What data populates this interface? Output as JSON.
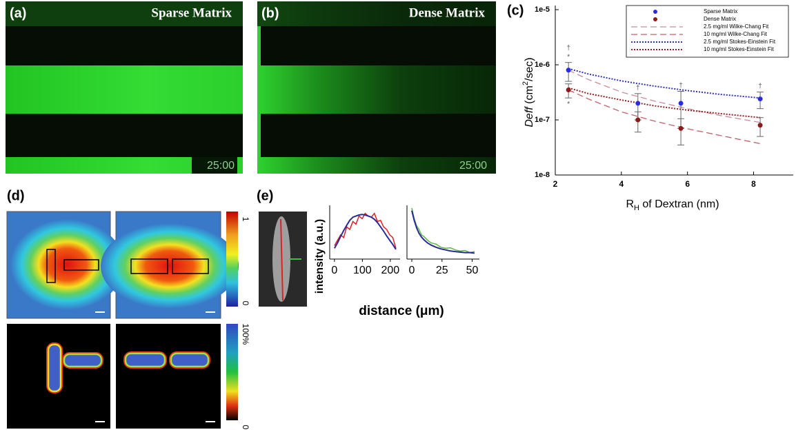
{
  "panel_labels": [
    "(a)",
    "(b)",
    "(c)",
    "(d)",
    "(e)"
  ],
  "panel_a": {
    "title": "Sparse Matrix",
    "time": "25:00"
  },
  "panel_b": {
    "title": "Dense Matrix",
    "time": "25:00"
  },
  "panel_d": {
    "colorbar_top": {
      "max": 1,
      "min": 0
    },
    "colorbar_bottom": {
      "max": "100%",
      "min": 0
    }
  },
  "panel_e": {
    "y_label": "intensity (a.u.)",
    "x_label": "distance (μm)"
  },
  "chart_data": [
    {
      "type": "scatter",
      "log_y": true,
      "x_label": [
        "R",
        "H",
        " of Dextran (nm)"
      ],
      "y_label": [
        "D",
        "eff",
        " (cm",
        "2",
        "/sec)"
      ],
      "xlim": [
        2,
        9.2
      ],
      "xticks": [
        2,
        4,
        6,
        8
      ],
      "ylim": [
        1e-08,
        1e-05
      ],
      "yticks": [
        {
          "value": 1e-08,
          "label": "1e-8"
        },
        {
          "value": 1e-07,
          "label": "1e-7"
        },
        {
          "value": 1e-06,
          "label": "1e-6"
        },
        {
          "value": 1e-05,
          "label": "1e-5"
        }
      ],
      "legend": "top-right",
      "series": [
        {
          "name": "Sparse Matrix",
          "color": "#2a2ae0",
          "style": "marker",
          "x": [
            2.4,
            4.5,
            5.8,
            8.2
          ],
          "values": [
            8e-07,
            2e-07,
            2e-07,
            2.4e-07
          ],
          "errors": [
            3e-07,
            1e-07,
            1.3e-07,
            8e-08
          ],
          "labels_above": [
            [
              "†",
              "*"
            ],
            [
              "†"
            ],
            [
              "†"
            ],
            [
              "†"
            ]
          ]
        },
        {
          "name": "Dense Matrix",
          "color": "#8b1a1a",
          "style": "marker",
          "x": [
            2.4,
            4.5,
            5.8,
            8.2
          ],
          "values": [
            3.5e-07,
            1e-07,
            7e-08,
            8e-08
          ],
          "errors": [
            1e-07,
            4e-08,
            3.5e-08,
            3e-08
          ],
          "labels_below": [
            "*",
            null,
            null,
            null
          ]
        },
        {
          "name": "2.5 mg/ml Wilke-Chang Fit",
          "color": "#c98a9c",
          "style": "dashed",
          "x": [
            2.4,
            3,
            4,
            5,
            6,
            7,
            8.2
          ],
          "values": [
            8e-07,
            5.4e-07,
            3.2e-07,
            2.2e-07,
            1.6e-07,
            1.2e-07,
            9e-08
          ]
        },
        {
          "name": "10 mg/ml Wilke-Chang Fit",
          "color": "#c0606a",
          "style": "dashed",
          "x": [
            2.4,
            3,
            4,
            5,
            6,
            7,
            8.2
          ],
          "values": [
            3.5e-07,
            2.4e-07,
            1.4e-07,
            9.5e-08,
            6.9e-08,
            5.2e-08,
            3.7e-08
          ]
        },
        {
          "name": "2.5 mg/ml Stokes-Einstein Fit",
          "color": "#3030c0",
          "style": "dotted",
          "x": [
            2.4,
            3,
            4,
            5,
            6,
            7,
            8.2
          ],
          "values": [
            8.5e-07,
            6.8e-07,
            5.1e-07,
            4.1e-07,
            3.4e-07,
            2.9e-07,
            2.5e-07
          ]
        },
        {
          "name": "10 mg/ml Stokes-Einstein Fit",
          "color": "#902020",
          "style": "dotted",
          "x": [
            2.4,
            3,
            4,
            5,
            6,
            7,
            8.2
          ],
          "values": [
            3.8e-07,
            3e-07,
            2.3e-07,
            1.8e-07,
            1.5e-07,
            1.3e-07,
            1.1e-07
          ]
        }
      ]
    },
    {
      "type": "line",
      "xlim": [
        -17,
        235
      ],
      "xticks": [
        0,
        100,
        200
      ],
      "ylim": [
        0,
        1
      ],
      "x": [
        0,
        11,
        22,
        33,
        44,
        55,
        66,
        77,
        88,
        99,
        110,
        121,
        132,
        143,
        154,
        165,
        176,
        187,
        198,
        209,
        220
      ],
      "series": [
        {
          "color": "#e02020",
          "values": [
            0.25,
            0.35,
            0.45,
            0.4,
            0.6,
            0.55,
            0.7,
            0.65,
            0.8,
            0.75,
            0.85,
            0.8,
            0.78,
            0.85,
            0.7,
            0.72,
            0.6,
            0.55,
            0.45,
            0.4,
            0.2
          ]
        },
        {
          "color": "#28289a",
          "values": [
            0.2,
            0.3,
            0.42,
            0.53,
            0.63,
            0.72,
            0.78,
            0.8,
            0.82,
            0.83,
            0.82,
            0.8,
            0.78,
            0.74,
            0.68,
            0.6,
            0.52,
            0.43,
            0.35,
            0.27,
            0.18
          ]
        }
      ]
    },
    {
      "type": "line",
      "xlim": [
        -4,
        56
      ],
      "xticks": [
        0,
        25,
        50
      ],
      "ylim": [
        0,
        1
      ],
      "x": [
        0,
        2,
        4,
        6,
        8,
        10,
        13,
        16,
        20,
        24,
        28,
        32,
        36,
        40,
        44,
        48,
        52
      ],
      "series": [
        {
          "color": "#5ab83a",
          "values": [
            0.95,
            0.75,
            0.62,
            0.55,
            0.45,
            0.42,
            0.35,
            0.3,
            0.28,
            0.22,
            0.2,
            0.21,
            0.17,
            0.15,
            0.16,
            0.12,
            0.14
          ]
        },
        {
          "color": "#28289a",
          "values": [
            0.9,
            0.72,
            0.58,
            0.48,
            0.41,
            0.36,
            0.3,
            0.26,
            0.22,
            0.19,
            0.17,
            0.15,
            0.14,
            0.13,
            0.12,
            0.12,
            0.11
          ]
        }
      ]
    }
  ]
}
